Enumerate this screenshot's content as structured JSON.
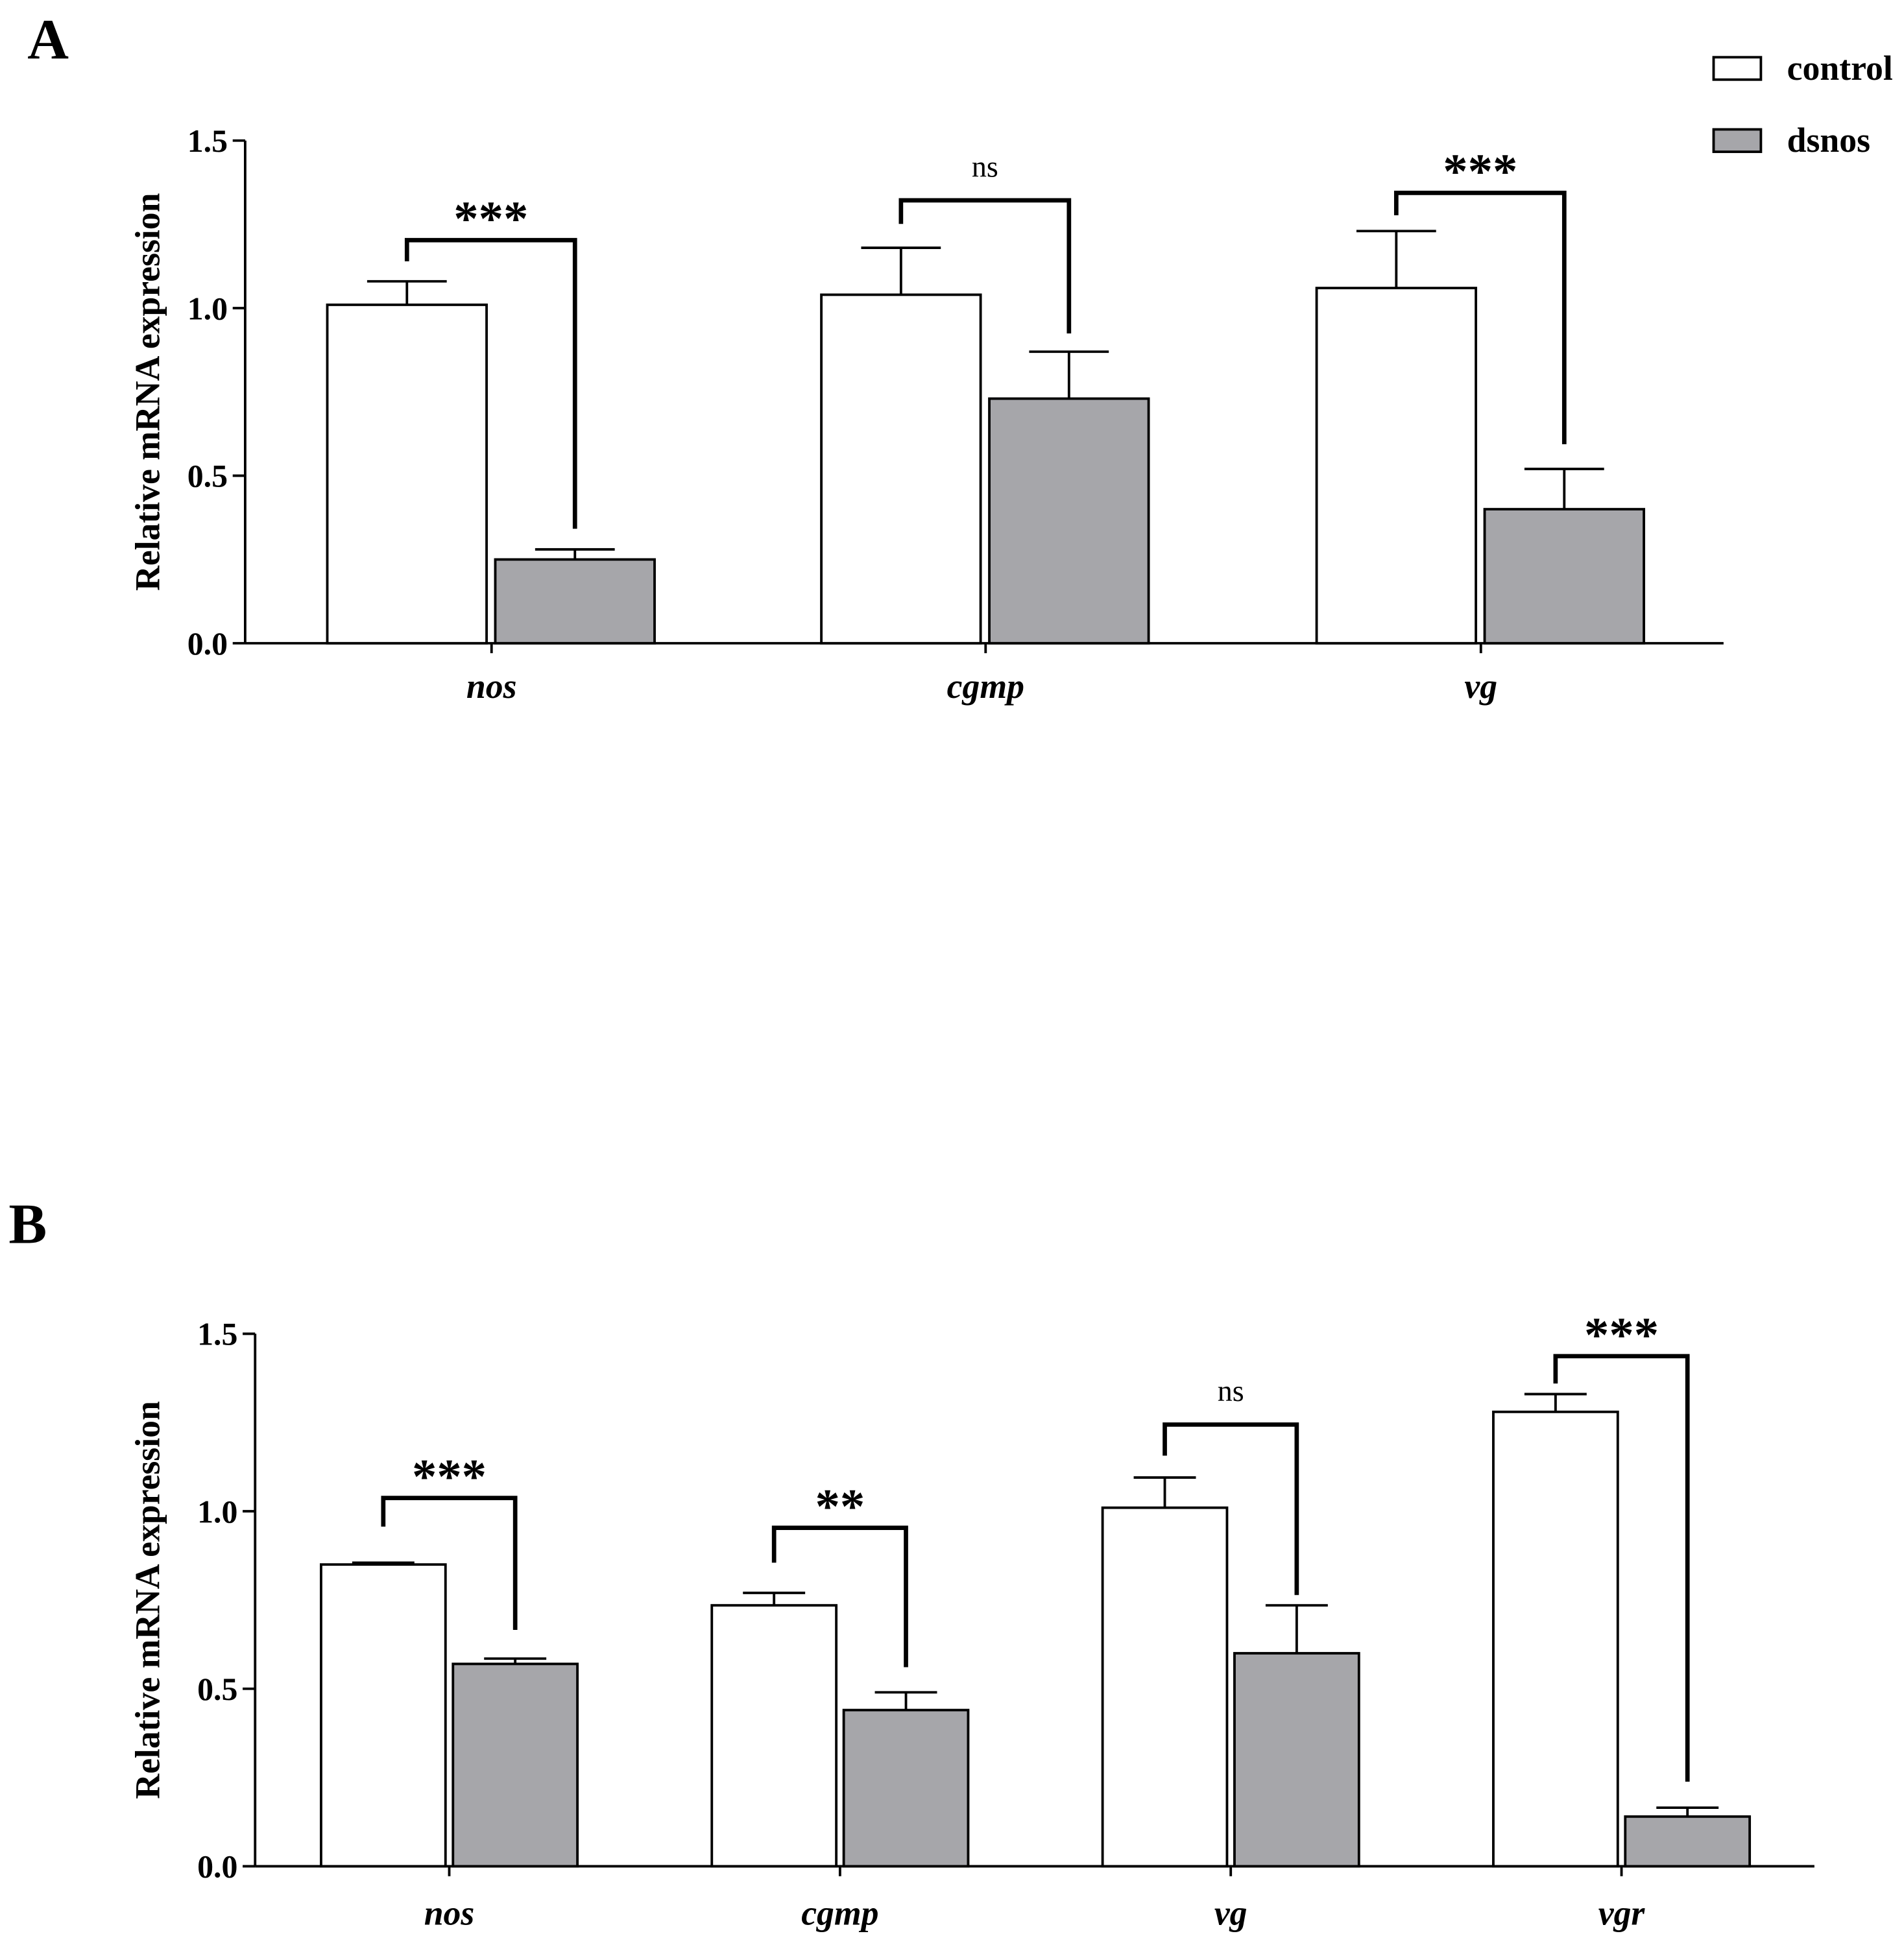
{
  "colors": {
    "control": "#ffffff",
    "dsnos": "#a6a6aa",
    "stroke": "#000000"
  },
  "chart_data": [
    {
      "panel_label": "A",
      "type": "bar",
      "title": "",
      "xlabel": "",
      "ylabel": "Relative mRNA expression",
      "ylim": [
        0,
        1.5
      ],
      "yticks": [
        "0.0",
        "0.5",
        "1.0",
        "1.5"
      ],
      "categories": [
        "nos",
        "cgmp",
        "vg"
      ],
      "series": [
        {
          "name": "control",
          "values": [
            1.01,
            1.04,
            1.06
          ],
          "errors": [
            0.07,
            0.14,
            0.17
          ]
        },
        {
          "name": "dsnos",
          "values": [
            0.25,
            0.73,
            0.4
          ],
          "errors": [
            0.03,
            0.14,
            0.12
          ]
        }
      ],
      "significance": [
        "***",
        "ns",
        "***"
      ],
      "legend": "top-right"
    },
    {
      "panel_label": "B",
      "type": "bar",
      "title": "",
      "xlabel": "",
      "ylabel": "Relative mRNA expression",
      "ylim": [
        0,
        1.5
      ],
      "yticks": [
        "0.0",
        "0.5",
        "1.0",
        "1.5"
      ],
      "categories": [
        "nos",
        "cgmp",
        "vg",
        "vgr"
      ],
      "series": [
        {
          "name": "control",
          "values": [
            0.85,
            0.735,
            1.01,
            1.28
          ],
          "errors": [
            0.005,
            0.035,
            0.085,
            0.05
          ]
        },
        {
          "name": "dsnos",
          "values": [
            0.57,
            0.44,
            0.6,
            0.14
          ],
          "errors": [
            0.015,
            0.05,
            0.135,
            0.025
          ]
        }
      ],
      "significance": [
        "***",
        "**",
        "ns",
        "***"
      ]
    }
  ]
}
